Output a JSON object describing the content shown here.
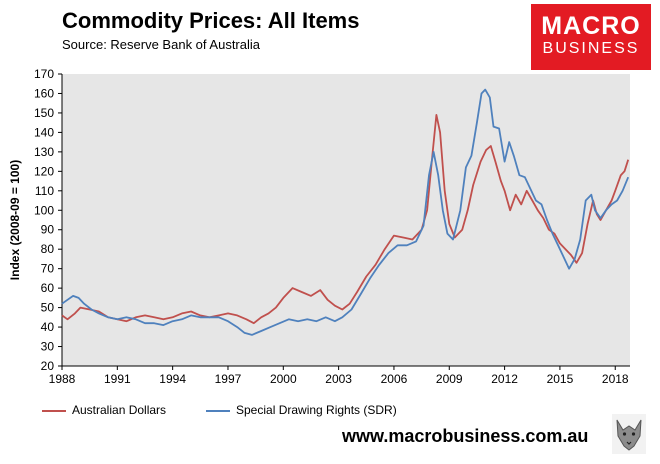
{
  "header": {
    "title": "Commodity Prices: All Items",
    "subtitle": "Source: Reserve Bank of Australia"
  },
  "logo": {
    "line1": "MACRO",
    "line2": "BUSINESS"
  },
  "footer": {
    "url": "www.macrobusiness.com.au"
  },
  "colors": {
    "aud": "#c0504d",
    "sdr": "#4f81bd",
    "brand": "#e31b23"
  },
  "chart_data": {
    "type": "line",
    "title": "Commodity Prices: All Items",
    "xlabel": "",
    "ylabel": "Index (2008-09 = 100)",
    "xlim": [
      1988,
      2018.8
    ],
    "ylim": [
      20,
      170
    ],
    "x_ticks": [
      1988,
      1991,
      1994,
      1997,
      2000,
      2003,
      2006,
      2009,
      2012,
      2015,
      2018
    ],
    "y_ticks": [
      20,
      30,
      40,
      50,
      60,
      70,
      80,
      90,
      100,
      110,
      120,
      130,
      140,
      150,
      160,
      170
    ],
    "plot_background": "#e6e6e6",
    "legend_position": "bottom",
    "series": [
      {
        "name": "Australian Dollars",
        "color": "#c0504d",
        "points": [
          [
            1988.0,
            46
          ],
          [
            1988.3,
            44
          ],
          [
            1988.7,
            47
          ],
          [
            1989.0,
            50
          ],
          [
            1989.5,
            49
          ],
          [
            1990.0,
            48
          ],
          [
            1990.5,
            45
          ],
          [
            1991.0,
            44
          ],
          [
            1991.5,
            43
          ],
          [
            1992.0,
            45
          ],
          [
            1992.5,
            46
          ],
          [
            1993.0,
            45
          ],
          [
            1993.5,
            44
          ],
          [
            1994.0,
            45
          ],
          [
            1994.5,
            47
          ],
          [
            1995.0,
            48
          ],
          [
            1995.5,
            46
          ],
          [
            1996.0,
            45
          ],
          [
            1996.5,
            46
          ],
          [
            1997.0,
            47
          ],
          [
            1997.5,
            46
          ],
          [
            1998.0,
            44
          ],
          [
            1998.4,
            42
          ],
          [
            1998.8,
            45
          ],
          [
            1999.2,
            47
          ],
          [
            1999.6,
            50
          ],
          [
            2000.0,
            55
          ],
          [
            2000.5,
            60
          ],
          [
            2001.0,
            58
          ],
          [
            2001.5,
            56
          ],
          [
            2002.0,
            59
          ],
          [
            2002.4,
            54
          ],
          [
            2002.8,
            51
          ],
          [
            2003.2,
            49
          ],
          [
            2003.6,
            52
          ],
          [
            2004.0,
            58
          ],
          [
            2004.5,
            66
          ],
          [
            2005.0,
            72
          ],
          [
            2005.5,
            80
          ],
          [
            2006.0,
            87
          ],
          [
            2006.5,
            86
          ],
          [
            2007.0,
            85
          ],
          [
            2007.5,
            90
          ],
          [
            2007.8,
            100
          ],
          [
            2008.1,
            130
          ],
          [
            2008.3,
            149
          ],
          [
            2008.5,
            140
          ],
          [
            2008.75,
            110
          ],
          [
            2009.0,
            93
          ],
          [
            2009.3,
            86
          ],
          [
            2009.7,
            90
          ],
          [
            2010.0,
            100
          ],
          [
            2010.3,
            113
          ],
          [
            2010.7,
            125
          ],
          [
            2011.0,
            131
          ],
          [
            2011.25,
            133
          ],
          [
            2011.5,
            125
          ],
          [
            2011.8,
            115
          ],
          [
            2012.0,
            110
          ],
          [
            2012.3,
            100
          ],
          [
            2012.6,
            108
          ],
          [
            2012.9,
            103
          ],
          [
            2013.2,
            110
          ],
          [
            2013.5,
            105
          ],
          [
            2013.8,
            100
          ],
          [
            2014.1,
            96
          ],
          [
            2014.4,
            90
          ],
          [
            2014.7,
            88
          ],
          [
            2015.0,
            83
          ],
          [
            2015.3,
            80
          ],
          [
            2015.6,
            77
          ],
          [
            2015.9,
            73
          ],
          [
            2016.2,
            78
          ],
          [
            2016.5,
            93
          ],
          [
            2016.8,
            105
          ],
          [
            2017.0,
            98
          ],
          [
            2017.2,
            95
          ],
          [
            2017.5,
            100
          ],
          [
            2017.8,
            105
          ],
          [
            2018.0,
            110
          ],
          [
            2018.3,
            118
          ],
          [
            2018.5,
            120
          ],
          [
            2018.7,
            126
          ]
        ]
      },
      {
        "name": "Special Drawing Rights (SDR)",
        "color": "#4f81bd",
        "points": [
          [
            1988.0,
            52
          ],
          [
            1988.3,
            54
          ],
          [
            1988.6,
            56
          ],
          [
            1988.9,
            55
          ],
          [
            1989.2,
            52
          ],
          [
            1989.6,
            49
          ],
          [
            1990.0,
            47
          ],
          [
            1990.5,
            45
          ],
          [
            1991.0,
            44
          ],
          [
            1991.5,
            45
          ],
          [
            1992.0,
            44
          ],
          [
            1992.5,
            42
          ],
          [
            1993.0,
            42
          ],
          [
            1993.5,
            41
          ],
          [
            1994.0,
            43
          ],
          [
            1994.5,
            44
          ],
          [
            1995.0,
            46
          ],
          [
            1995.5,
            45
          ],
          [
            1996.0,
            45
          ],
          [
            1996.5,
            45
          ],
          [
            1997.0,
            43
          ],
          [
            1997.5,
            40
          ],
          [
            1997.9,
            37
          ],
          [
            1998.3,
            36
          ],
          [
            1998.8,
            38
          ],
          [
            1999.3,
            40
          ],
          [
            1999.8,
            42
          ],
          [
            2000.3,
            44
          ],
          [
            2000.8,
            43
          ],
          [
            2001.3,
            44
          ],
          [
            2001.8,
            43
          ],
          [
            2002.3,
            45
          ],
          [
            2002.8,
            43
          ],
          [
            2003.2,
            45
          ],
          [
            2003.7,
            49
          ],
          [
            2004.2,
            57
          ],
          [
            2004.7,
            65
          ],
          [
            2005.2,
            72
          ],
          [
            2005.7,
            78
          ],
          [
            2006.2,
            82
          ],
          [
            2006.7,
            82
          ],
          [
            2007.2,
            84
          ],
          [
            2007.6,
            92
          ],
          [
            2007.9,
            118
          ],
          [
            2008.15,
            130
          ],
          [
            2008.4,
            118
          ],
          [
            2008.65,
            100
          ],
          [
            2008.9,
            88
          ],
          [
            2009.2,
            85
          ],
          [
            2009.6,
            100
          ],
          [
            2009.9,
            122
          ],
          [
            2010.2,
            128
          ],
          [
            2010.5,
            145
          ],
          [
            2010.75,
            160
          ],
          [
            2010.95,
            162
          ],
          [
            2011.2,
            158
          ],
          [
            2011.4,
            143
          ],
          [
            2011.7,
            142
          ],
          [
            2012.0,
            125
          ],
          [
            2012.25,
            135
          ],
          [
            2012.5,
            128
          ],
          [
            2012.8,
            118
          ],
          [
            2013.1,
            117
          ],
          [
            2013.4,
            111
          ],
          [
            2013.7,
            105
          ],
          [
            2014.0,
            103
          ],
          [
            2014.3,
            95
          ],
          [
            2014.6,
            88
          ],
          [
            2014.9,
            82
          ],
          [
            2015.2,
            76
          ],
          [
            2015.5,
            70
          ],
          [
            2015.8,
            75
          ],
          [
            2016.1,
            85
          ],
          [
            2016.4,
            105
          ],
          [
            2016.7,
            108
          ],
          [
            2016.9,
            100
          ],
          [
            2017.2,
            96
          ],
          [
            2017.5,
            100
          ],
          [
            2017.8,
            103
          ],
          [
            2018.1,
            105
          ],
          [
            2018.4,
            110
          ],
          [
            2018.7,
            117
          ]
        ]
      }
    ]
  }
}
